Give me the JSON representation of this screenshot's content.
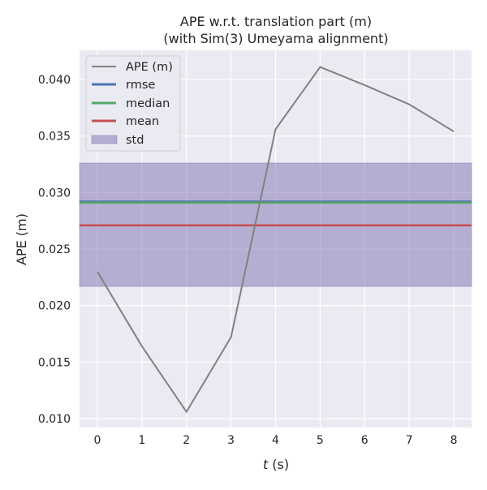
{
  "chart_data": {
    "type": "line",
    "title": "APE w.r.t. translation part (m)",
    "subtitle": "(with Sim(3) Umeyama alignment)",
    "xlabel_italic": "t",
    "xlabel_rest": " (s)",
    "ylabel": "APE (m)",
    "xlim": [
      -0.4,
      8.4
    ],
    "ylim": [
      0.00921,
      0.04258
    ],
    "xticks": [
      0,
      1,
      2,
      3,
      4,
      5,
      6,
      7,
      8
    ],
    "xtick_labels": [
      "0",
      "1",
      "2",
      "3",
      "4",
      "5",
      "6",
      "7",
      "8"
    ],
    "yticks": [
      0.01,
      0.015,
      0.02,
      0.025,
      0.03,
      0.035,
      0.04
    ],
    "ytick_labels": [
      "0.010",
      "0.015",
      "0.020",
      "0.025",
      "0.030",
      "0.035",
      "0.040"
    ],
    "grid": true,
    "legend_position": "top-left",
    "series": [
      {
        "name": "APE (m)",
        "color": "#808080",
        "x": [
          0,
          1,
          2,
          3,
          4,
          5,
          6,
          7,
          8
        ],
        "values": [
          0.023,
          0.0164,
          0.0106,
          0.0172,
          0.0356,
          0.0411,
          0.0395,
          0.0378,
          0.0354
        ]
      }
    ],
    "stats": {
      "rmse": {
        "name": "rmse",
        "value": 0.0292,
        "color": "#4c72b0"
      },
      "median": {
        "name": "median",
        "value": 0.0291,
        "color": "#55a868"
      },
      "mean": {
        "name": "mean",
        "value": 0.0271,
        "color": "#c44e52"
      },
      "std": {
        "name": "std",
        "lower": 0.0217,
        "upper": 0.0326,
        "color": "#8172b2"
      }
    }
  }
}
